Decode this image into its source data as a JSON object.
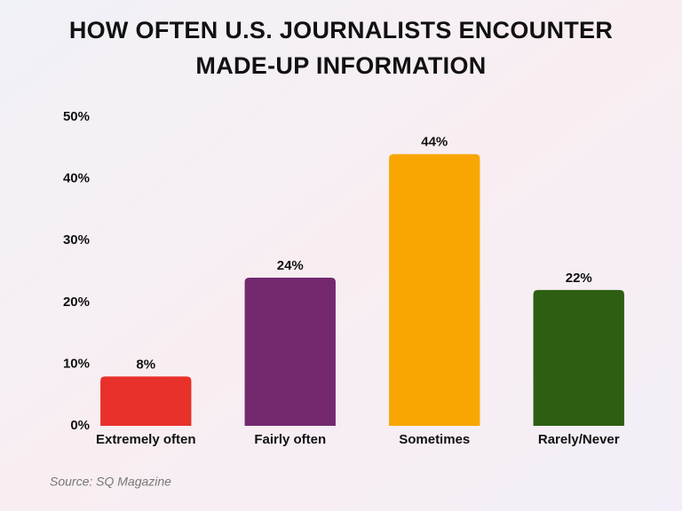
{
  "chart_data": {
    "type": "bar",
    "title": [
      "HOW OFTEN U.S. JOURNALISTS ENCOUNTER",
      "MADE-UP INFORMATION"
    ],
    "categories": [
      "Extremely often",
      "Fairly often",
      "Sometimes",
      "Rarely/Never"
    ],
    "values": [
      8,
      24,
      44,
      22
    ],
    "value_labels": [
      "8%",
      "24%",
      "44%",
      "22%"
    ],
    "colors": [
      "#e8312a",
      "#74296f",
      "#f9a602",
      "#2e5e12"
    ],
    "ylim": [
      0,
      50
    ],
    "yticks": [
      {
        "value": 0,
        "label": "0%"
      },
      {
        "value": 10,
        "label": "10%"
      },
      {
        "value": 20,
        "label": "20%"
      },
      {
        "value": 30,
        "label": "30%"
      },
      {
        "value": 40,
        "label": "40%"
      },
      {
        "value": 50,
        "label": "50%"
      }
    ],
    "grid": false,
    "source": "Source: SQ Magazine"
  }
}
